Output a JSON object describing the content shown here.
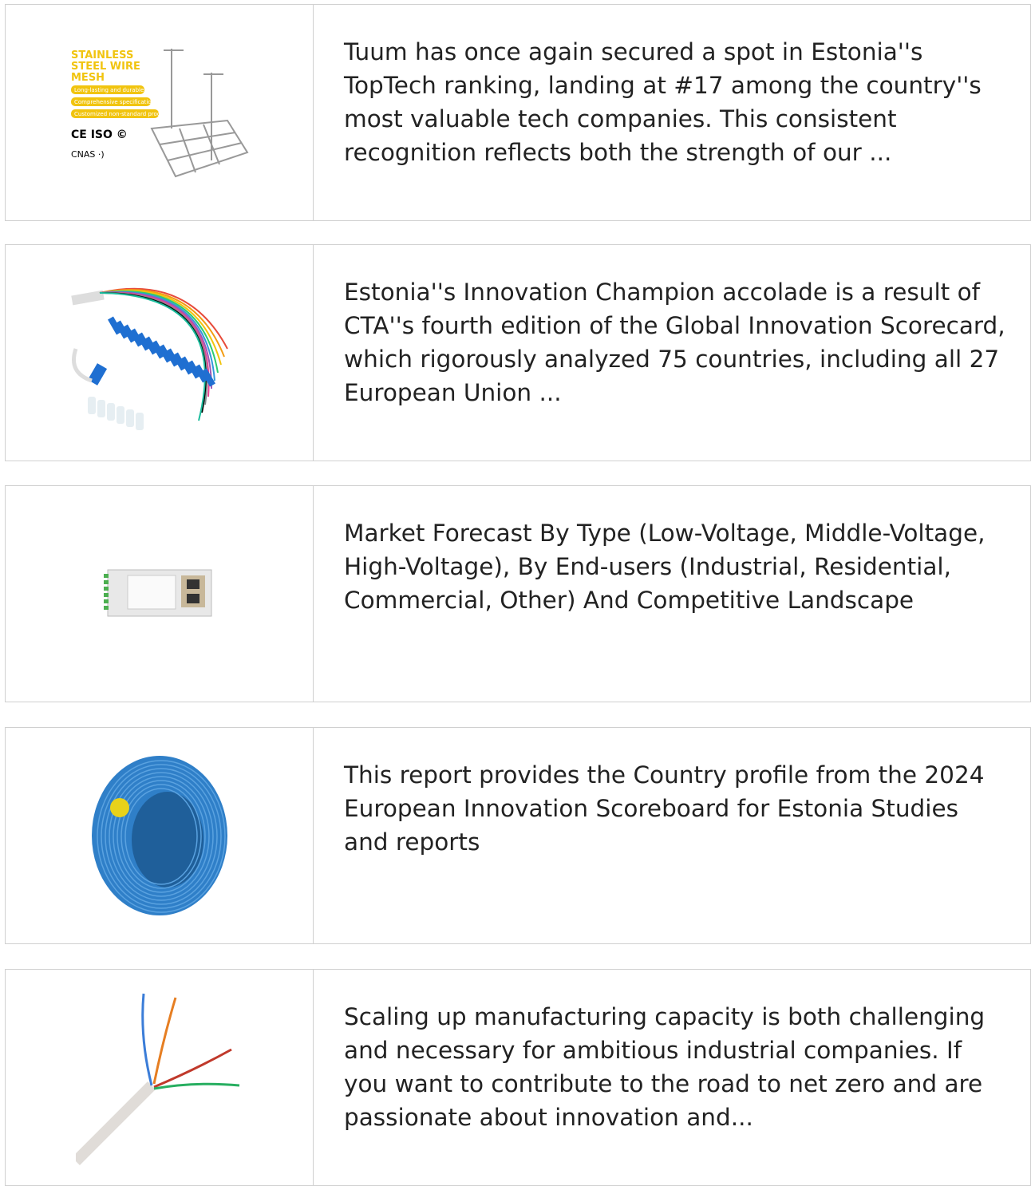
{
  "items": [
    {
      "text": "Tuum has once again secured a spot in Estonia''s TopTech ranking, landing at #17 among the country''s most valuable tech companies. This consistent recognition reflects both the strength of our ...",
      "image_text": [
        "STAINLESS",
        "STEEL WIRE",
        "MESH",
        "Long-lasting and durable",
        "Comprehensive specifications",
        "Customized non-standard products"
      ]
    },
    {
      "text": "Estonia''s Innovation Champion accolade is a result of CTA''s fourth edition of the Global Innovation Scorecard, which rigorously analyzed 75 countries, including all 27 European Union ..."
    },
    {
      "text": "Market Forecast By Type (Low-Voltage, Middle-Voltage, High-Voltage), By End-users (Industrial, Residential, Commercial, Other) And Competitive Landscape"
    },
    {
      "text": "This report provides the Country profile from the 2024 European Innovation Scoreboard for Estonia Studies and reports"
    },
    {
      "text": "Scaling up manufacturing capacity is both challenging and necessary for ambitious industrial companies. If you want to contribute to the road to net zero and are passionate about innovation and..."
    }
  ]
}
